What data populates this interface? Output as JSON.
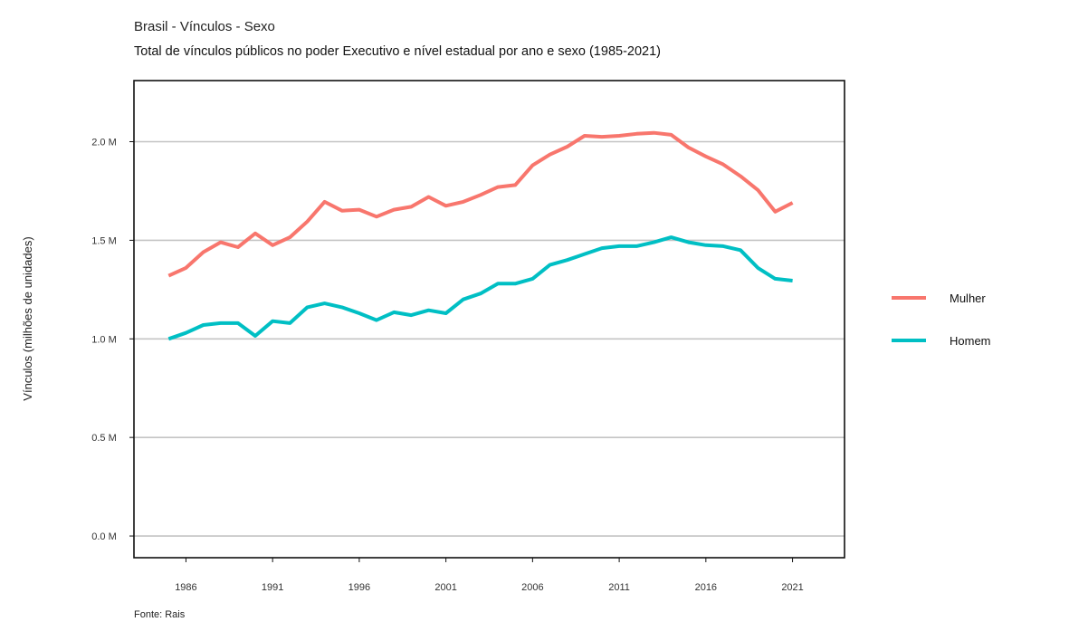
{
  "header": {
    "title": "Brasil - Vínculos - Sexo",
    "subtitle": "Total de vínculos públicos no poder Executivo e nível estadual por ano e sexo (1985-2021)"
  },
  "footer": {
    "source": "Fonte: Rais"
  },
  "chart_data": {
    "type": "line",
    "title": "Total de vínculos públicos no poder Executivo e nível estadual por ano e sexo (1985-2021)",
    "xlabel": "",
    "ylabel": "Vínculos (milhões de unidades)",
    "xlim": [
      1983,
      2024
    ],
    "ylim": [
      -0.11,
      2.31
    ],
    "x_ticks": [
      1986,
      1991,
      1996,
      2001,
      2006,
      2011,
      2016,
      2021
    ],
    "x_tick_labels": [
      "1986",
      "1991",
      "1996",
      "2001",
      "2006",
      "2011",
      "2016",
      "2021"
    ],
    "y_ticks": [
      0.0,
      0.5,
      1.0,
      1.5,
      2.0
    ],
    "y_tick_labels": [
      "0.0 M",
      "0.5 M",
      "1.0 M",
      "1.5 M",
      "2.0 M"
    ],
    "grid": "horizontal",
    "legend_position": "right",
    "x": [
      1985,
      1986,
      1987,
      1988,
      1989,
      1990,
      1991,
      1992,
      1993,
      1994,
      1995,
      1996,
      1997,
      1998,
      1999,
      2000,
      2001,
      2002,
      2003,
      2004,
      2005,
      2006,
      2007,
      2008,
      2009,
      2010,
      2011,
      2012,
      2013,
      2014,
      2015,
      2016,
      2017,
      2018,
      2019,
      2020,
      2021
    ],
    "series": [
      {
        "name": "Mulher",
        "color": "#F8766D",
        "values": [
          1.32,
          1.36,
          1.44,
          1.49,
          1.465,
          1.535,
          1.475,
          1.515,
          1.595,
          1.695,
          1.65,
          1.655,
          1.62,
          1.655,
          1.67,
          1.72,
          1.675,
          1.695,
          1.73,
          1.77,
          1.78,
          1.88,
          1.935,
          1.975,
          2.03,
          2.025,
          2.03,
          2.04,
          2.045,
          2.035,
          1.97,
          1.925,
          1.885,
          1.825,
          1.755,
          1.645,
          1.69
        ]
      },
      {
        "name": "Homem",
        "color": "#00BFC4",
        "values": [
          1.0,
          1.03,
          1.07,
          1.08,
          1.08,
          1.015,
          1.09,
          1.08,
          1.16,
          1.18,
          1.16,
          1.13,
          1.095,
          1.135,
          1.12,
          1.145,
          1.13,
          1.2,
          1.23,
          1.28,
          1.28,
          1.305,
          1.375,
          1.4,
          1.43,
          1.46,
          1.47,
          1.47,
          1.49,
          1.515,
          1.49,
          1.475,
          1.47,
          1.45,
          1.36,
          1.305,
          1.295
        ]
      }
    ]
  }
}
